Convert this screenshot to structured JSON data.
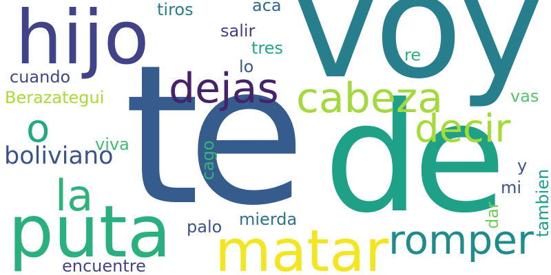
{
  "wordcloud": {
    "words": [
      {
        "text": "te",
        "color": "#365c8d"
      },
      {
        "text": "de",
        "color": "#1fa187"
      },
      {
        "text": "voy",
        "color": "#277f8e"
      },
      {
        "text": "hijo",
        "color": "#404387"
      },
      {
        "text": "puta",
        "color": "#2ab07f"
      },
      {
        "text": "matar",
        "color": "#f3e51e"
      },
      {
        "text": "romper",
        "color": "#1e8c8c"
      },
      {
        "text": "cabeza",
        "color": "#a3d93c"
      },
      {
        "text": "decir",
        "color": "#a5db36"
      },
      {
        "text": "dejas",
        "color": "#46226b"
      },
      {
        "text": "o",
        "color": "#23a884"
      },
      {
        "text": "la",
        "color": "#2db37a"
      },
      {
        "text": "boliviano",
        "color": "#3b528b"
      },
      {
        "text": "Berazategui",
        "color": "#a8db34"
      },
      {
        "text": "cuando",
        "color": "#3e4989"
      },
      {
        "text": "viva",
        "color": "#3dbc74"
      },
      {
        "text": "cago",
        "color": "#35b779"
      },
      {
        "text": "tiros",
        "color": "#2a7c8e"
      },
      {
        "text": "aca",
        "color": "#31688e"
      },
      {
        "text": "salir",
        "color": "#433e85"
      },
      {
        "text": "tres",
        "color": "#22a785"
      },
      {
        "text": "lo",
        "color": "#38598c"
      },
      {
        "text": "re",
        "color": "#2db27d"
      },
      {
        "text": "vas",
        "color": "#52c569"
      },
      {
        "text": "y",
        "color": "#3b528b"
      },
      {
        "text": "mi",
        "color": "#3b528b"
      },
      {
        "text": "dar",
        "color": "#6ece58"
      },
      {
        "text": "tambien",
        "color": "#1f9e89"
      },
      {
        "text": "palo",
        "color": "#3b528b"
      },
      {
        "text": "mierda",
        "color": "#2c728e"
      },
      {
        "text": "encuentre",
        "color": "#414487"
      }
    ]
  }
}
